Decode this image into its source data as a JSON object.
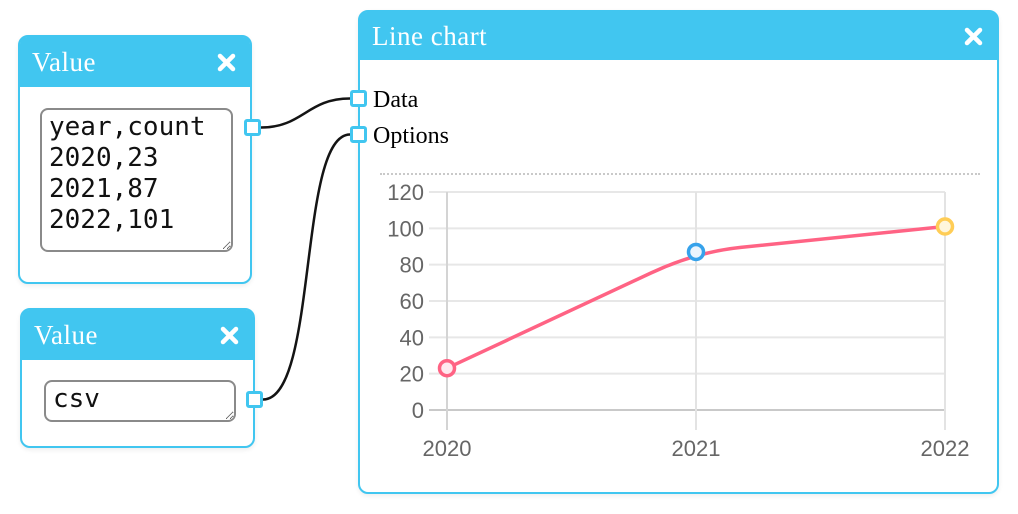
{
  "app": {
    "background": "#ffffff",
    "accent_blue": "#41c6f0",
    "wire_color": "#141414"
  },
  "icons": {
    "close": "x-cross",
    "port": "square-connector",
    "resize_handle": "diagonal-grip"
  },
  "nodes": {
    "value1": {
      "title": "Value",
      "textarea_value": "year,count\n2020,23\n2021,87\n2022,101"
    },
    "value2": {
      "title": "Value",
      "textarea_value": "csv"
    },
    "chart": {
      "title": "Line chart",
      "inputs": [
        {
          "label": "Data"
        },
        {
          "label": "Options"
        }
      ]
    }
  },
  "chart_data": {
    "type": "line",
    "categories": [
      "2020",
      "2021",
      "2022"
    ],
    "values": [
      23,
      87,
      101
    ],
    "title": "",
    "xlabel": "",
    "ylabel": "",
    "ylim": [
      0,
      120
    ],
    "yticks": [
      0,
      20,
      40,
      60,
      80,
      100,
      120
    ],
    "grid": true,
    "legend": "none",
    "line_color": "#ff6384",
    "point_border_colors": [
      "#ff6384",
      "#36a2eb",
      "#ffcd56"
    ],
    "point_fill_colors": [
      "#ffe9ef",
      "#eaf4fd",
      "#fff6dd"
    ],
    "grid_color": "#e7e7e7",
    "zero_line_color": "#c9c9c9",
    "axis_label_color": "#666666"
  }
}
